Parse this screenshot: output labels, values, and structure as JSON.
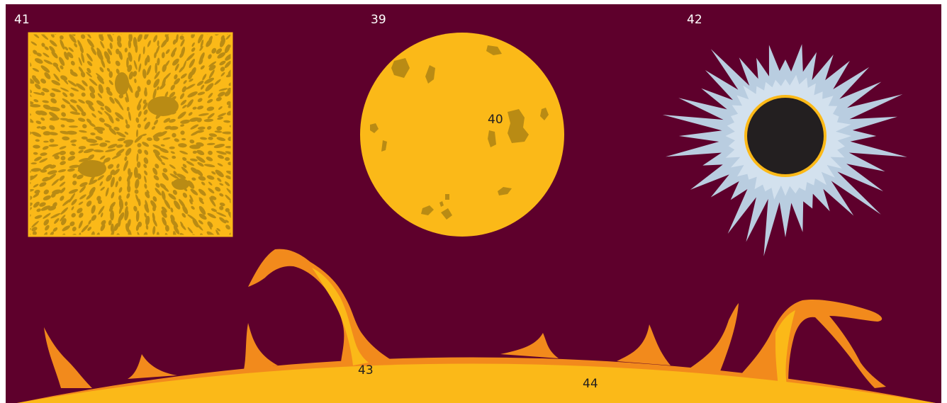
{
  "labels": {
    "granulation": "41",
    "sun_disk": "39",
    "sunspot": "40",
    "corona": "42",
    "prominence": "43",
    "chromosphere": "44"
  },
  "colors": {
    "background": "#5e002c",
    "sun_yellow": "#fbb918",
    "spot_olive": "#b98b14",
    "flame_orange": "#f28a1c",
    "corona_blue": "#b9cde0",
    "corona_light": "#d3e1ee",
    "moon_dark": "#231f20",
    "label_light": "#ffffff",
    "label_dark": "#231f20"
  }
}
